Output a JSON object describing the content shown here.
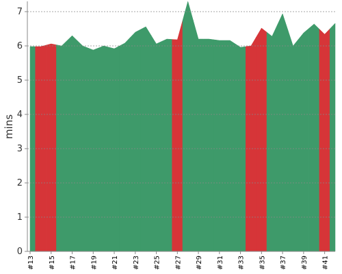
{
  "chart_data": {
    "type": "area",
    "y_label": "mins",
    "categories": [
      "#13",
      null,
      "#15",
      null,
      "#17",
      null,
      "#19",
      null,
      "#21",
      null,
      "#23",
      null,
      "#25",
      null,
      "#27",
      null,
      "#29",
      null,
      "#31",
      null,
      "#33",
      null,
      "#35",
      null,
      "#37",
      null,
      "#39",
      null,
      "#41",
      null
    ],
    "values": [
      5.98,
      5.98,
      6.06,
      6.0,
      6.3,
      6.0,
      5.88,
      6.0,
      5.92,
      6.08,
      6.4,
      6.56,
      6.06,
      6.2,
      6.18,
      7.3,
      6.2,
      6.2,
      6.16,
      6.16,
      5.96,
      6.0,
      6.52,
      6.28,
      6.94,
      6.0,
      6.38,
      6.64,
      6.34,
      6.66
    ],
    "point_colors": [
      "#3e9a6a",
      "#d63538",
      "#d63538",
      "#3e9a6a",
      "#3e9a6a",
      "#3e9a6a",
      "#3e9a6a",
      "#3e9a6a",
      "#3e9a6a",
      "#3e9a6a",
      "#3e9a6a",
      "#3e9a6a",
      "#3e9a6a",
      "#3e9a6a",
      "#d63538",
      "#3e9a6a",
      "#3e9a6a",
      "#3e9a6a",
      "#3e9a6a",
      "#3e9a6a",
      "#3e9a6a",
      "#d63538",
      "#d63538",
      "#3e9a6a",
      "#3e9a6a",
      "#3e9a6a",
      "#3e9a6a",
      "#3e9a6a",
      "#d63538",
      "#3e9a6a"
    ],
    "ylim": [
      0,
      7.3
    ],
    "yticks": [
      0,
      1,
      2,
      3,
      4,
      5,
      6,
      7
    ],
    "grid": true
  }
}
